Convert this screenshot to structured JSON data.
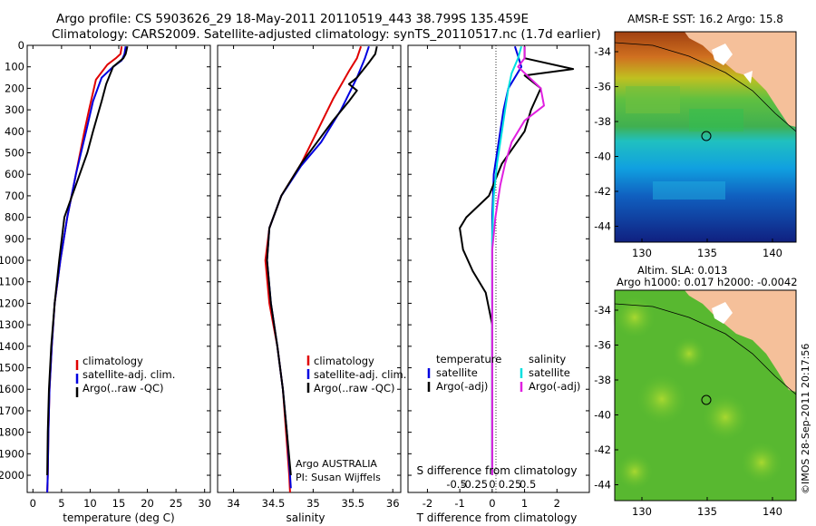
{
  "header": {
    "title_line1": "Argo profile: CS 5903626_29 18-May-2011 20110519_443 38.799S 135.459E",
    "title_line2": "Climatology: CARS2009. Satellite-adjusted climatology: synTS_20110517.nc (1.7d earlier)"
  },
  "colors": {
    "climatology": "#e00000",
    "satellite": "#0000e0",
    "argo": "#000000",
    "sat_salinity": "#00e0e0",
    "argo_salinity": "#e020e0",
    "land": "#f5c09a"
  },
  "chart_data": [
    {
      "id": "temperature",
      "type": "line",
      "xlabel": "temperature (deg C)",
      "xlim": [
        -1,
        31
      ],
      "xticks": [
        0,
        5,
        10,
        15,
        20,
        25,
        30
      ],
      "ylim": [
        0,
        2080
      ],
      "yticks": [
        0,
        100,
        200,
        300,
        400,
        500,
        600,
        700,
        800,
        900,
        1000,
        1100,
        1200,
        1300,
        1400,
        1500,
        1600,
        1700,
        1800,
        1900,
        2000
      ],
      "legend": [
        "climatology",
        "satellite-adj. clim.",
        "Argo(..raw -QC)"
      ],
      "series": [
        {
          "name": "climatology",
          "color": "#e00000",
          "points": [
            [
              15.5,
              5
            ],
            [
              15.3,
              40
            ],
            [
              14.5,
              60
            ],
            [
              13.0,
              90
            ],
            [
              11.0,
              160
            ],
            [
              9.8,
              300
            ],
            [
              9.0,
              400
            ],
            [
              7.5,
              600
            ],
            [
              6.0,
              800
            ],
            [
              4.8,
              1000
            ],
            [
              3.8,
              1200
            ],
            [
              3.3,
              1400
            ],
            [
              2.9,
              1600
            ],
            [
              2.7,
              1800
            ],
            [
              2.6,
              2000
            ],
            [
              2.5,
              2080
            ]
          ]
        },
        {
          "name": "satellite-adj. clim.",
          "color": "#0000e0",
          "points": [
            [
              16.2,
              5
            ],
            [
              16.0,
              40
            ],
            [
              15.5,
              70
            ],
            [
              14.0,
              100
            ],
            [
              12.0,
              150
            ],
            [
              10.5,
              260
            ],
            [
              9.3,
              400
            ],
            [
              7.5,
              600
            ],
            [
              6.0,
              800
            ],
            [
              4.8,
              1000
            ],
            [
              3.8,
              1200
            ],
            [
              3.3,
              1400
            ],
            [
              2.9,
              1600
            ],
            [
              2.7,
              1800
            ],
            [
              2.6,
              2000
            ],
            [
              2.5,
              2080
            ]
          ]
        },
        {
          "name": "Argo(..raw -QC)",
          "color": "#000000",
          "points": [
            [
              16.5,
              5
            ],
            [
              16.2,
              40
            ],
            [
              15.8,
              60
            ],
            [
              14.0,
              100
            ],
            [
              12.8,
              180
            ],
            [
              12.0,
              260
            ],
            [
              10.5,
              400
            ],
            [
              9.5,
              500
            ],
            [
              7.5,
              650
            ],
            [
              5.5,
              800
            ],
            [
              4.6,
              1000
            ],
            [
              3.8,
              1200
            ],
            [
              3.2,
              1400
            ],
            [
              2.8,
              1600
            ],
            [
              2.6,
              1800
            ],
            [
              2.5,
              2000
            ]
          ]
        }
      ]
    },
    {
      "id": "salinity",
      "type": "line",
      "xlabel": "salinity",
      "xlim": [
        33.8,
        36.1
      ],
      "xticks": [
        34,
        34.5,
        35,
        35.5,
        36
      ],
      "xticklabels": [
        "34",
        "34.5",
        "35",
        "35.5",
        "36"
      ],
      "ylim": [
        0,
        2080
      ],
      "legend": [
        "climatology",
        "satellite-adj. clim.",
        "Argo(..raw -QC)"
      ],
      "annotations": [
        "Argo AUSTRALIA",
        "PI: Susan Wijffels"
      ],
      "series": [
        {
          "name": "climatology",
          "color": "#e00000",
          "points": [
            [
              35.6,
              5
            ],
            [
              35.55,
              60
            ],
            [
              35.45,
              120
            ],
            [
              35.25,
              250
            ],
            [
              35.05,
              400
            ],
            [
              34.85,
              550
            ],
            [
              34.6,
              700
            ],
            [
              34.45,
              850
            ],
            [
              34.4,
              1000
            ],
            [
              34.45,
              1200
            ],
            [
              34.55,
              1400
            ],
            [
              34.62,
              1600
            ],
            [
              34.66,
              1800
            ],
            [
              34.7,
              2000
            ],
            [
              34.71,
              2080
            ]
          ]
        },
        {
          "name": "satellite-adj. clim.",
          "color": "#0000e0",
          "points": [
            [
              35.7,
              5
            ],
            [
              35.65,
              60
            ],
            [
              35.55,
              150
            ],
            [
              35.35,
              300
            ],
            [
              35.1,
              450
            ],
            [
              34.85,
              560
            ],
            [
              34.6,
              700
            ],
            [
              34.45,
              850
            ],
            [
              34.42,
              1000
            ],
            [
              34.47,
              1200
            ],
            [
              34.55,
              1400
            ],
            [
              34.62,
              1600
            ],
            [
              34.67,
              1800
            ],
            [
              34.71,
              2000
            ],
            [
              34.72,
              2060
            ]
          ]
        },
        {
          "name": "Argo(..raw -QC)",
          "color": "#000000",
          "points": [
            [
              35.8,
              5
            ],
            [
              35.78,
              40
            ],
            [
              35.7,
              80
            ],
            [
              35.55,
              150
            ],
            [
              35.45,
              180
            ],
            [
              35.55,
              210
            ],
            [
              35.45,
              260
            ],
            [
              35.25,
              350
            ],
            [
              35.05,
              450
            ],
            [
              34.85,
              550
            ],
            [
              34.6,
              700
            ],
            [
              34.45,
              850
            ],
            [
              34.42,
              1000
            ],
            [
              34.47,
              1200
            ],
            [
              34.55,
              1400
            ],
            [
              34.62,
              1600
            ],
            [
              34.67,
              1800
            ],
            [
              34.72,
              2000
            ]
          ]
        }
      ]
    },
    {
      "id": "difference",
      "type": "line",
      "xlabel": "T difference from climatology",
      "xlabel_top": "S difference from climatology",
      "xlim": [
        -2.6,
        3.0
      ],
      "xticks": [
        -2,
        -1,
        0,
        1,
        2
      ],
      "sxticks": [
        -0.5,
        -0.25,
        0,
        0.25,
        0.5
      ],
      "sxticklabels": [
        "-0.5",
        "-0.25",
        "0",
        "0.25",
        "0.5"
      ],
      "ylim": [
        0,
        2080
      ],
      "legend_left_title": "temperature",
      "legend_right_title": "salinity",
      "legend": [
        "satellite",
        "Argo(-adj)",
        "satellite",
        "Argo(-adj)"
      ],
      "series": [
        {
          "name": "satellite",
          "color": "#0000e0",
          "points": [
            [
              0.7,
              5
            ],
            [
              0.8,
              50
            ],
            [
              0.9,
              100
            ],
            [
              0.5,
              200
            ],
            [
              0.35,
              300
            ],
            [
              0.2,
              450
            ],
            [
              0.05,
              600
            ],
            [
              0.0,
              800
            ],
            [
              0.0,
              1200
            ],
            [
              0.0,
              2000
            ]
          ]
        },
        {
          "name": "Argo(-adj)",
          "color": "#000000",
          "points": [
            [
              1.0,
              5
            ],
            [
              1.0,
              60
            ],
            [
              2.5,
              110
            ],
            [
              1.0,
              140
            ],
            [
              1.5,
              200
            ],
            [
              1.2,
              300
            ],
            [
              1.0,
              400
            ],
            [
              0.3,
              550
            ],
            [
              -0.1,
              700
            ],
            [
              -0.8,
              800
            ],
            [
              -1.0,
              850
            ],
            [
              -0.9,
              950
            ],
            [
              -0.6,
              1050
            ],
            [
              -0.2,
              1150
            ],
            [
              0.0,
              1300
            ],
            [
              0.0,
              2000
            ]
          ]
        },
        {
          "name": "satellite",
          "color": "#00e0e0",
          "points": [
            [
              0.9,
              5
            ],
            [
              0.8,
              60
            ],
            [
              0.6,
              130
            ],
            [
              0.5,
              200
            ],
            [
              0.4,
              300
            ],
            [
              0.3,
              400
            ],
            [
              0.15,
              550
            ],
            [
              0.05,
              700
            ],
            [
              0.0,
              900
            ],
            [
              0.0,
              1100
            ],
            [
              0.0,
              2000
            ]
          ]
        },
        {
          "name": "Argo(-adj)",
          "color": "#e020e0",
          "points": [
            [
              1.0,
              5
            ],
            [
              1.0,
              60
            ],
            [
              0.8,
              100
            ],
            [
              1.5,
              200
            ],
            [
              1.6,
              280
            ],
            [
              1.0,
              350
            ],
            [
              0.6,
              450
            ],
            [
              0.4,
              550
            ],
            [
              0.25,
              650
            ],
            [
              0.1,
              800
            ],
            [
              0.0,
              950
            ],
            [
              0.0,
              1100
            ],
            [
              0.0,
              2000
            ]
          ]
        }
      ]
    }
  ],
  "map_sst": {
    "title": "AMSR-E SST: 16.2 Argo: 15.8",
    "xticks": [
      "130",
      "135",
      "140"
    ],
    "yticks": [
      "-34",
      "-36",
      "-38",
      "-40",
      "-42",
      "-44"
    ]
  },
  "map_sla": {
    "title_line1": "Altim. SLA: 0.013",
    "title_line2": "Argo h1000: 0.017 h2000: -0.0042",
    "xticks": [
      "130",
      "135",
      "140"
    ],
    "yticks": [
      "-34",
      "-36",
      "-38",
      "-40",
      "-42",
      "-44"
    ]
  },
  "credit": "©IMOS 28-Sep-2011 20:17:56"
}
